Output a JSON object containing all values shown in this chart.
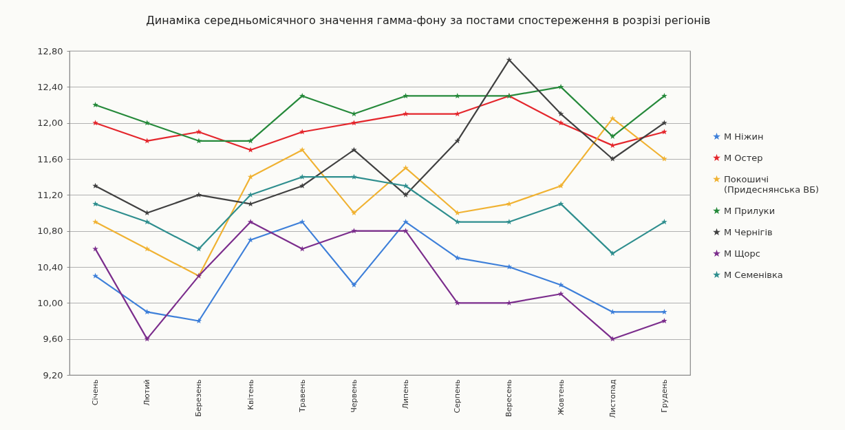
{
  "chart_data": {
    "type": "line",
    "title": "Динаміка середньомісячного значення гамма-фону за постами спостереження в розрізі регіонів",
    "categories": [
      "Січень",
      "Лютий",
      "Березень",
      "Квітень",
      "Травень",
      "Червень",
      "Липень",
      "Серпень",
      "Вересень",
      "Жовтень",
      "Листопад",
      "Грудень"
    ],
    "series": [
      {
        "name": "М Ніжин",
        "color": "#3d7fd9",
        "values": [
          10.3,
          9.9,
          9.8,
          10.7,
          10.9,
          10.2,
          10.9,
          10.5,
          10.4,
          10.2,
          9.9,
          9.9
        ]
      },
      {
        "name": "М Остер",
        "color": "#e4262c",
        "values": [
          12.0,
          11.8,
          11.9,
          11.7,
          11.9,
          12.0,
          12.1,
          12.1,
          12.3,
          12.0,
          11.75,
          11.9
        ]
      },
      {
        "name": "Покошичі (Придеснянська ВБ)",
        "color": "#f0b232",
        "values": [
          10.9,
          10.6,
          10.3,
          11.4,
          11.7,
          11.0,
          11.5,
          11.0,
          11.1,
          11.3,
          12.05,
          11.6
        ]
      },
      {
        "name": "М Прилуки",
        "color": "#25893a",
        "values": [
          12.2,
          12.0,
          11.8,
          11.8,
          12.3,
          12.1,
          12.3,
          12.3,
          12.3,
          12.4,
          11.85,
          12.3
        ]
      },
      {
        "name": "М Чернігів",
        "color": "#404040",
        "values": [
          11.3,
          11.0,
          11.2,
          11.1,
          11.3,
          11.7,
          11.2,
          11.8,
          12.7,
          12.1,
          11.6,
          12.0
        ]
      },
      {
        "name": "М Щорс",
        "color": "#7b2d8c",
        "values": [
          10.6,
          9.6,
          10.3,
          10.9,
          10.6,
          10.8,
          10.8,
          10.0,
          10.0,
          10.1,
          9.6,
          9.8
        ]
      },
      {
        "name": "М Семенівка",
        "color": "#2e8e8e",
        "values": [
          11.1,
          10.9,
          10.6,
          11.2,
          11.4,
          11.4,
          11.3,
          10.9,
          10.9,
          11.1,
          10.55,
          10.9
        ]
      }
    ],
    "ylim": [
      9.2,
      12.8
    ],
    "yticks": [
      {
        "value": 9.2,
        "label": "9,20"
      },
      {
        "value": 9.6,
        "label": "9,60"
      },
      {
        "value": 10.0,
        "label": "10,00"
      },
      {
        "value": 10.4,
        "label": "10,40"
      },
      {
        "value": 10.8,
        "label": "10,80"
      },
      {
        "value": 11.2,
        "label": "11,20"
      },
      {
        "value": 11.6,
        "label": "11,60"
      },
      {
        "value": 12.0,
        "label": "12,00"
      },
      {
        "value": 12.4,
        "label": "12,40"
      },
      {
        "value": 12.8,
        "label": "12,80"
      }
    ],
    "grid": "y",
    "legend": "right",
    "marker": "star",
    "line_style": "solid"
  }
}
